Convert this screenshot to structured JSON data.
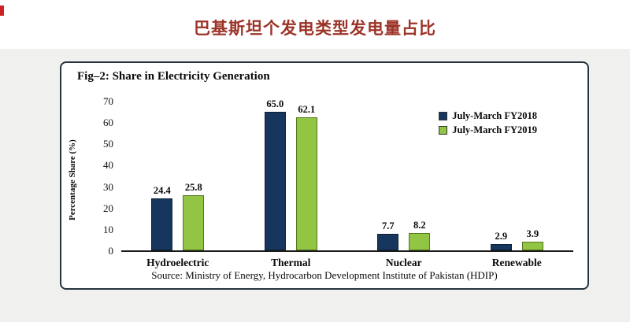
{
  "page": {
    "title": "巴基斯坦个发电类型发电量占比"
  },
  "chart_data": {
    "type": "bar",
    "title": "Fig–2: Share in Electricity Generation",
    "categories": [
      "Hydroelectric",
      "Thermal",
      "Nuclear",
      "Renewable"
    ],
    "series": [
      {
        "name": "July-March FY2018",
        "color": "#17365d",
        "border": "#0d1f35",
        "values": [
          24.4,
          65.0,
          7.7,
          2.9
        ]
      },
      {
        "name": "July-March FY2019",
        "color": "#92c544",
        "border": "#55771f",
        "values": [
          25.8,
          62.1,
          8.2,
          3.9
        ]
      }
    ],
    "ylabel": "Percentage Share (%)",
    "yticks": [
      0,
      10,
      20,
      30,
      40,
      50,
      60,
      70
    ],
    "ylim": [
      0,
      70
    ],
    "grid": false,
    "legend_position": "inside upper right",
    "source": "Source: Ministry of Energy, Hydrocarbon Development Institute of Pakistan (HDIP)"
  }
}
